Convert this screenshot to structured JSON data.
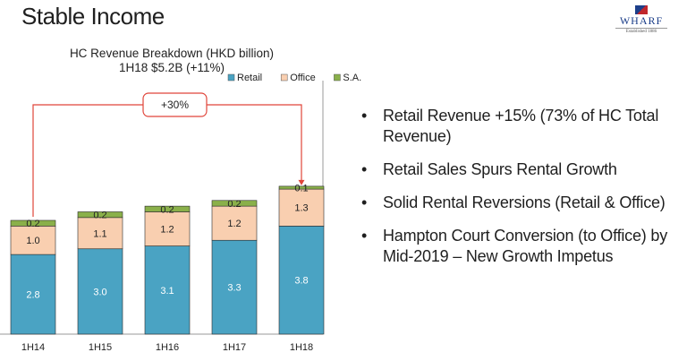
{
  "slide": {
    "title": "Stable Income",
    "logo": {
      "name": "WHARF",
      "established": "Established 1886"
    }
  },
  "bullets": [
    "Retail Revenue +15% (73% of HC Total Revenue)",
    "Retail Sales Spurs Rental Growth",
    "Solid Rental Reversions (Retail & Office)",
    "Hampton Court Conversion (to Office) by Mid-2019 – New Growth Impetus"
  ],
  "chart_data": {
    "type": "bar",
    "stacked": true,
    "title": "HC Revenue Breakdown (HKD billion)",
    "subtitle": "1H18 $5.2B (+11%)",
    "categories": [
      "1H14",
      "1H15",
      "1H16",
      "1H17",
      "1H18"
    ],
    "series": [
      {
        "name": "Retail",
        "values": [
          2.8,
          3.0,
          3.1,
          3.3,
          3.8
        ],
        "color": "#4aa3c3"
      },
      {
        "name": "Office",
        "values": [
          1.0,
          1.1,
          1.2,
          1.2,
          1.3
        ],
        "color": "#f9cfb0"
      },
      {
        "name": "S.A.",
        "values": [
          0.2,
          0.2,
          0.2,
          0.2,
          0.1
        ],
        "color": "#8ab04a"
      }
    ],
    "legend_position": "top-right",
    "annotation": {
      "label": "+30%",
      "from": "1H14",
      "to": "1H18"
    },
    "ylim": [
      0,
      5.2
    ],
    "grid": false
  }
}
